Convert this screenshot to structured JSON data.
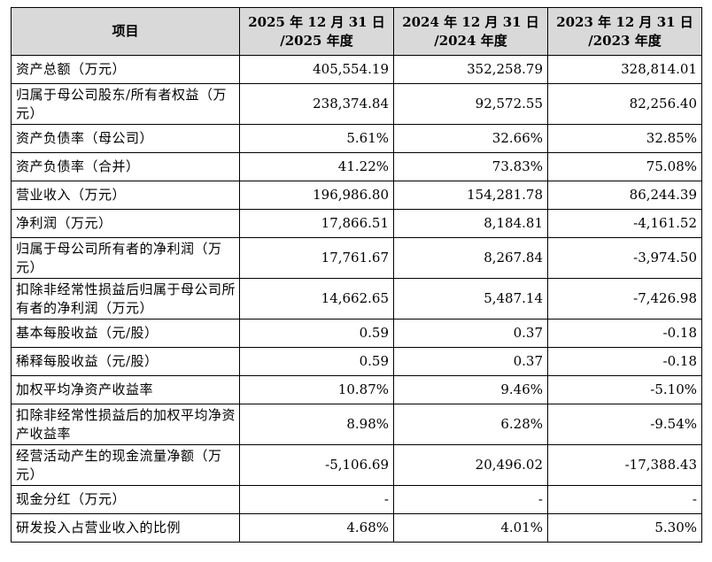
{
  "table": {
    "headers": [
      {
        "line1": "项目",
        "line2": ""
      },
      {
        "line1": "2025 年 12 月 31 日",
        "line2": "/2025 年度"
      },
      {
        "line1": "2024 年 12 月 31 日",
        "line2": "/2024 年度"
      },
      {
        "line1": "2023 年 12 月 31 日",
        "line2": "/2023 年度"
      }
    ],
    "rows": [
      {
        "item": "资产总额（万元）",
        "v2025": "405,554.19",
        "v2024": "352,258.79",
        "v2023": "328,814.01"
      },
      {
        "item": "归属于母公司股东/所有者权益（万元）",
        "v2025": "238,374.84",
        "v2024": "92,572.55",
        "v2023": "82,256.40"
      },
      {
        "item": "资产负债率（母公司）",
        "v2025": "5.61%",
        "v2024": "32.66%",
        "v2023": "32.85%"
      },
      {
        "item": "资产负债率（合并）",
        "v2025": "41.22%",
        "v2024": "73.83%",
        "v2023": "75.08%"
      },
      {
        "item": "营业收入（万元）",
        "v2025": "196,986.80",
        "v2024": "154,281.78",
        "v2023": "86,244.39"
      },
      {
        "item": "净利润（万元）",
        "v2025": "17,866.51",
        "v2024": "8,184.81",
        "v2023": "-4,161.52"
      },
      {
        "item": "归属于母公司所有者的净利润（万元）",
        "v2025": "17,761.67",
        "v2024": "8,267.84",
        "v2023": "-3,974.50"
      },
      {
        "item": "扣除非经常性损益后归属于母公司所有者的净利润（万元）",
        "v2025": "14,662.65",
        "v2024": "5,487.14",
        "v2023": "-7,426.98"
      },
      {
        "item": "基本每股收益（元/股）",
        "v2025": "0.59",
        "v2024": "0.37",
        "v2023": "-0.18"
      },
      {
        "item": "稀释每股收益（元/股）",
        "v2025": "0.59",
        "v2024": "0.37",
        "v2023": "-0.18"
      },
      {
        "item": "加权平均净资产收益率",
        "v2025": "10.87%",
        "v2024": "9.46%",
        "v2023": "-5.10%"
      },
      {
        "item": "扣除非经常性损益后的加权平均净资产收益率",
        "v2025": "8.98%",
        "v2024": "6.28%",
        "v2023": "-9.54%"
      },
      {
        "item": "经营活动产生的现金流量净额（万元）",
        "v2025": "-5,106.69",
        "v2024": "20,496.02",
        "v2023": "-17,388.43"
      },
      {
        "item": "现金分红（万元）",
        "v2025": "-",
        "v2024": "-",
        "v2023": "-"
      },
      {
        "item": "研发投入占营业收入的比例",
        "v2025": "4.68%",
        "v2024": "4.01%",
        "v2023": "5.30%"
      }
    ]
  }
}
